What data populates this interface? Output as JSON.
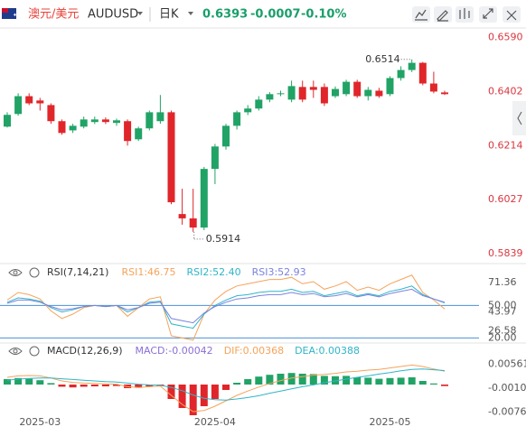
{
  "header": {
    "name": "澳元/美元",
    "symbol": "AUDUSD",
    "period": "日K",
    "price": "0.6393",
    "change": "-0.0007",
    "change_pct": "-0.10%",
    "color": "#1a9e6b"
  },
  "chart_data": [
    {
      "type": "candlestick",
      "categories": [
        null,
        null,
        null,
        "2025-03",
        null,
        null,
        null,
        null,
        null,
        null,
        null,
        null,
        null,
        null,
        null,
        null,
        null,
        null,
        null,
        "2025-04",
        null,
        null,
        null,
        null,
        null,
        null,
        null,
        null,
        null,
        null,
        null,
        null,
        null,
        null,
        null,
        "2025-05",
        null,
        null,
        null,
        null,
        null
      ],
      "open": [
        0.628,
        0.6324,
        0.6386,
        0.6371,
        0.6355,
        0.6299,
        0.6267,
        0.628,
        0.6296,
        0.6305,
        0.6293,
        0.6299,
        0.6236,
        0.6274,
        0.6299,
        0.633,
        0.5976,
        0.5961,
        0.5929,
        0.6133,
        0.6211,
        0.6283,
        0.633,
        0.6343,
        0.6374,
        0.6393,
        0.6374,
        0.6418,
        0.6418,
        0.6418,
        0.6386,
        0.6393,
        0.6436,
        0.6386,
        0.6405,
        0.6393,
        0.6449,
        0.6477,
        0.6502,
        0.643,
        0.6399
      ],
      "high": [
        0.633,
        0.6396,
        0.6396,
        0.638,
        0.6361,
        0.6305,
        0.629,
        0.6315,
        0.6315,
        0.6312,
        0.6308,
        0.6305,
        0.628,
        0.6336,
        0.639,
        0.6336,
        0.6064,
        0.6064,
        0.614,
        0.622,
        0.629,
        0.6336,
        0.6355,
        0.6386,
        0.64,
        0.6405,
        0.644,
        0.644,
        0.644,
        0.643,
        0.642,
        0.6443,
        0.6443,
        0.6418,
        0.6415,
        0.6455,
        0.649,
        0.6514,
        0.6505,
        0.6471,
        0.6405
      ],
      "low": [
        0.6277,
        0.6318,
        0.6355,
        0.6336,
        0.629,
        0.6252,
        0.6258,
        0.6274,
        0.6289,
        0.6289,
        0.6283,
        0.6214,
        0.623,
        0.6267,
        0.629,
        0.601,
        0.5939,
        0.5914,
        0.592,
        0.608,
        0.62,
        0.627,
        0.632,
        0.6336,
        0.6365,
        0.6386,
        0.6365,
        0.6365,
        0.638,
        0.6352,
        0.638,
        0.6386,
        0.638,
        0.6371,
        0.638,
        0.6386,
        0.644,
        0.647,
        0.6424,
        0.6396,
        0.639
      ],
      "close": [
        0.6321,
        0.6386,
        0.6361,
        0.6361,
        0.6299,
        0.6258,
        0.6283,
        0.6305,
        0.6305,
        0.6296,
        0.6302,
        0.623,
        0.6274,
        0.633,
        0.633,
        0.6017,
        0.5961,
        0.5929,
        0.6133,
        0.6211,
        0.6283,
        0.633,
        0.6343,
        0.6374,
        0.6393,
        0.6396,
        0.6421,
        0.6374,
        0.6408,
        0.6361,
        0.6411,
        0.6436,
        0.6386,
        0.6408,
        0.6386,
        0.6449,
        0.6477,
        0.6502,
        0.643,
        0.6402,
        0.6393
      ],
      "up_color": "#21a366",
      "down_color": "#e0262a",
      "ylim": [
        0.581,
        0.662
      ],
      "yticks": [
        {
          "value": 0.659,
          "label": "0.6590"
        },
        0.6402,
        0.6214,
        0.6027,
        0.5839
      ],
      "grid": false
    },
    {
      "type": "line",
      "title": "RSI(7,14,21)",
      "series": [
        {
          "name": "RSI1:46.75",
          "color": "#f5a35a",
          "values": [
            55,
            62,
            60,
            56,
            45,
            38,
            42,
            48,
            50,
            49,
            50,
            40,
            48,
            56,
            58,
            22,
            20,
            18,
            42,
            55,
            63,
            68,
            70,
            72,
            74,
            74,
            76,
            70,
            72,
            65,
            68,
            72,
            64,
            67,
            64,
            70,
            74,
            78,
            62,
            55,
            46.75
          ]
        },
        {
          "name": "RSI2:52.40",
          "color": "#2fb5c8",
          "values": [
            53,
            57,
            56,
            54,
            48,
            44,
            46,
            49,
            50,
            49,
            50,
            44,
            48,
            53,
            54,
            33,
            31,
            29,
            42,
            50,
            55,
            59,
            60,
            62,
            63,
            63,
            65,
            62,
            63,
            59,
            61,
            63,
            59,
            61,
            59,
            63,
            65,
            68,
            60,
            56,
            52.4
          ]
        },
        {
          "name": "RSI3:52.93",
          "color": "#7b82e0",
          "values": [
            52,
            55,
            55,
            53,
            49,
            46,
            47,
            49,
            50,
            49,
            50,
            46,
            48,
            52,
            53,
            38,
            36,
            34,
            43,
            49,
            53,
            56,
            57,
            59,
            60,
            60,
            62,
            60,
            61,
            58,
            59,
            61,
            58,
            60,
            58,
            61,
            63,
            65,
            59,
            56,
            52.93
          ]
        }
      ],
      "ylim": [
        17,
        82
      ],
      "yticks": [
        71.36,
        {
          "value": 50,
          "label": "50.00"
        },
        43.97,
        26.58,
        {
          "value": 20,
          "label": "20.00"
        }
      ],
      "hlines": [
        50,
        20
      ],
      "hline_color": "#4a90d9",
      "grid": false
    },
    {
      "type": "macd",
      "title": "MACD(12,26,9)",
      "series": [
        {
          "name": "MACD:-0.00042",
          "type": "bar",
          "color": "#8b6fd6",
          "up_color": "#21a366",
          "down_color": "#e0262a",
          "values": [
            0.0015,
            0.0018,
            0.0016,
            0.0012,
            0.0004,
            -0.0006,
            -0.0008,
            -0.0006,
            -0.0005,
            -0.0005,
            -0.0004,
            -0.001,
            -0.0009,
            -0.0005,
            -0.0004,
            -0.004,
            -0.0065,
            -0.0085,
            -0.006,
            -0.004,
            -0.0015,
            0.0005,
            0.0015,
            0.0022,
            0.0027,
            0.003,
            0.0032,
            0.003,
            0.0029,
            0.0024,
            0.0023,
            0.0024,
            0.002,
            0.0019,
            0.0016,
            0.0018,
            0.0019,
            0.002,
            0.001,
            0.0003,
            -0.00042
          ]
        },
        {
          "name": "DIF:0.00368",
          "type": "line",
          "color": "#f5a35a",
          "values": [
            0.002,
            0.0024,
            0.0025,
            0.0024,
            0.0018,
            0.001,
            0.0006,
            0.0004,
            0.0003,
            0.0002,
            0.0001,
            -0.0006,
            -0.0008,
            -0.0006,
            -0.0004,
            -0.003,
            -0.0055,
            -0.0075,
            -0.0072,
            -0.006,
            -0.0045,
            -0.003,
            -0.0018,
            -0.0007,
            0.0003,
            0.0011,
            0.0018,
            0.0022,
            0.0026,
            0.0028,
            0.0031,
            0.0035,
            0.0037,
            0.004,
            0.0042,
            0.0046,
            0.005,
            0.0054,
            0.005,
            0.0043,
            0.00368
          ]
        },
        {
          "name": "DEA:0.00388",
          "type": "line",
          "color": "#2fb5c8",
          "values": [
            0.0012,
            0.0015,
            0.0017,
            0.0018,
            0.0018,
            0.0016,
            0.0014,
            0.0012,
            0.001,
            0.0008,
            0.0007,
            0.0004,
            0.0001,
            -0.0001,
            -0.0002,
            -0.0008,
            -0.0017,
            -0.0029,
            -0.0038,
            -0.0042,
            -0.0043,
            -0.004,
            -0.0036,
            -0.0031,
            -0.0024,
            -0.0018,
            -0.0012,
            -0.0006,
            -0.0001,
            0.0005,
            0.001,
            0.0015,
            0.002,
            0.0024,
            0.0029,
            0.0033,
            0.0038,
            0.0042,
            0.0043,
            0.0041,
            0.00388
          ]
        }
      ],
      "ylim": [
        -0.009,
        0.01025
      ],
      "yticks": [
        0.00561,
        {
          "value": -0.001,
          "label": "-0.00100"
        },
        -0.00761
      ],
      "grid": false
    }
  ]
}
